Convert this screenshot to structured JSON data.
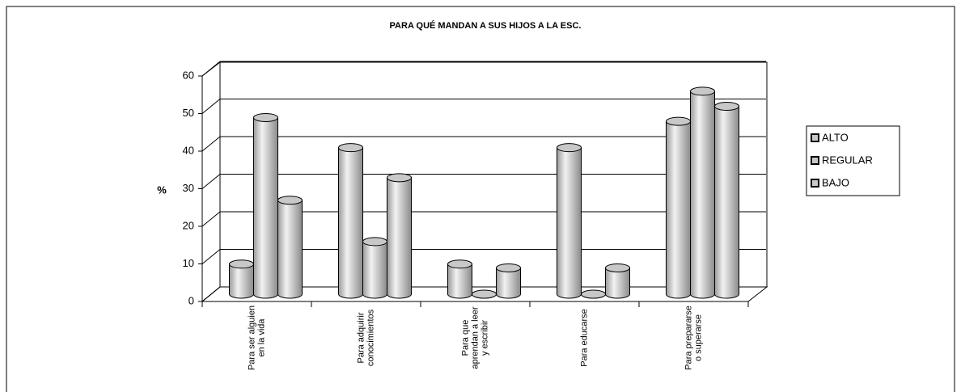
{
  "chart_data": {
    "type": "bar3d",
    "title": "PARA QUÉ MANDAN A SUS HIJOS A LA ESC.",
    "y_label": "%",
    "categories": [
      "Para ser alguien\nen la vida",
      "Para adquirir\nconocimientos",
      "Para que\naprendan a leer\ny escribir",
      "Para educarse",
      "Para prepararse\no superarse"
    ],
    "series": [
      {
        "name": "ALTO",
        "color": "#c8c8c8",
        "values": [
          8,
          39,
          8,
          39,
          46
        ]
      },
      {
        "name": "REGULAR",
        "color": "#c8c8c8",
        "values": [
          47,
          14,
          0,
          0,
          54
        ]
      },
      {
        "name": "BAJO",
        "color": "#c8c8c8",
        "values": [
          25,
          31,
          7,
          7,
          50
        ]
      }
    ],
    "ylim": [
      0,
      60
    ],
    "yticks": [
      0,
      10,
      20,
      30,
      40,
      50,
      60
    ],
    "grid": true,
    "legend": "right"
  }
}
